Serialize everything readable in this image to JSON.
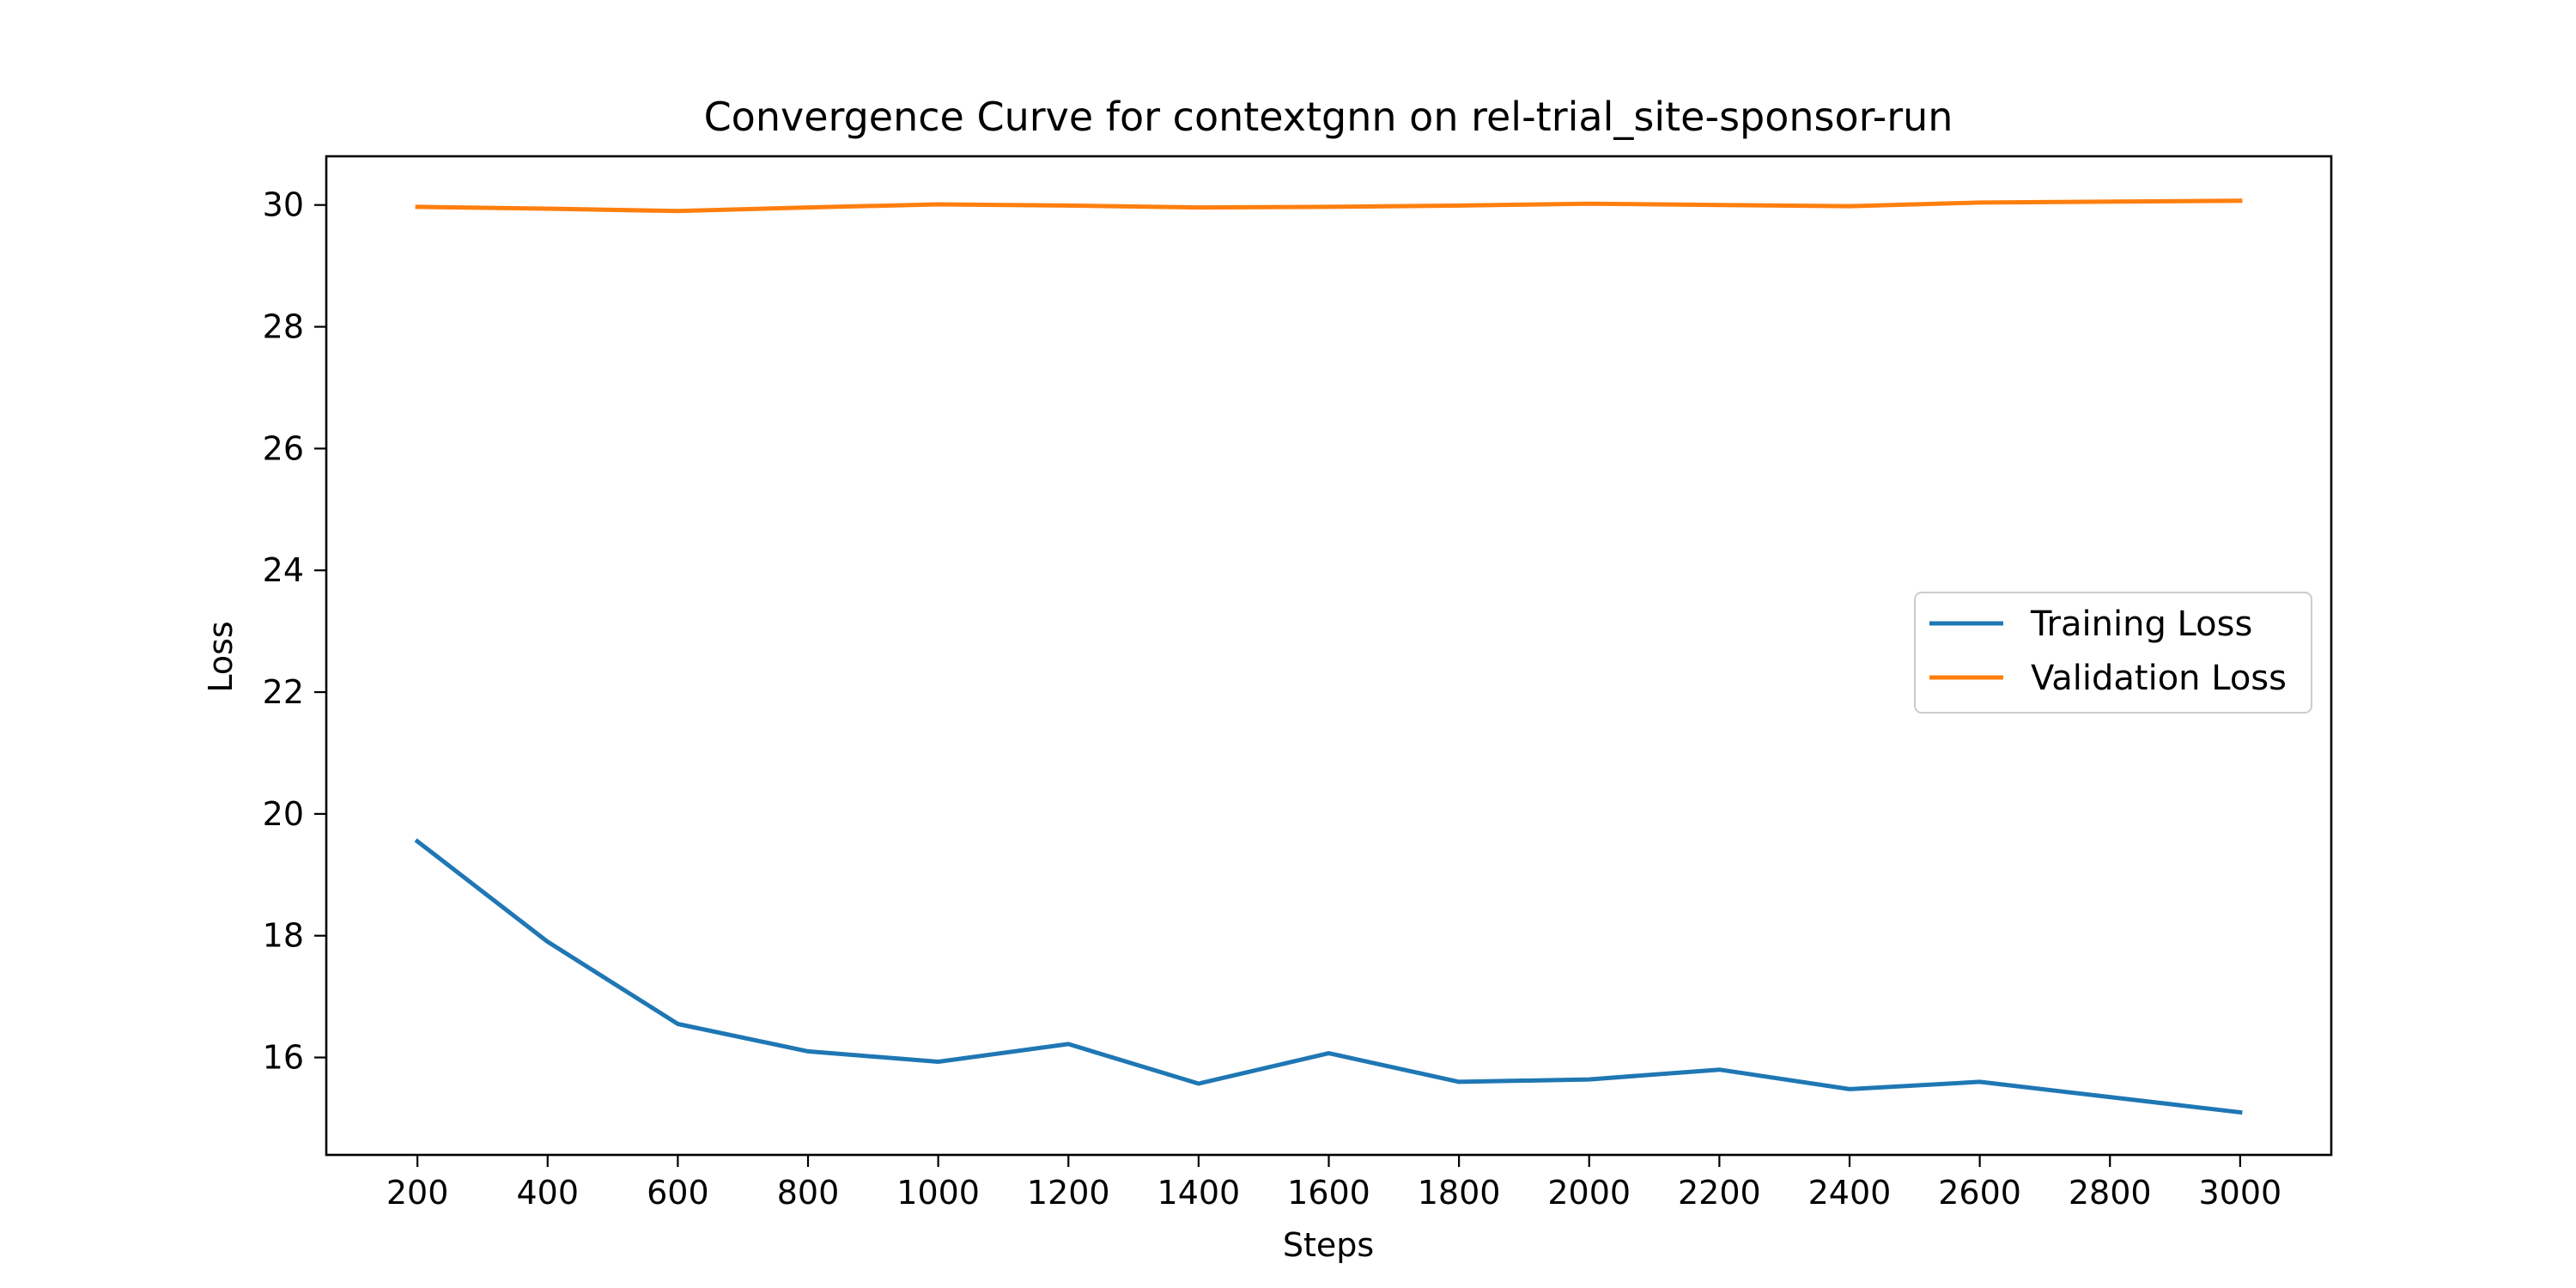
{
  "chart_data": {
    "type": "line",
    "title": "Convergence Curve for contextgnn on rel-trial_site-sponsor-run",
    "xlabel": "Steps",
    "ylabel": "Loss",
    "x": [
      200,
      400,
      600,
      800,
      1000,
      1200,
      1400,
      1600,
      1800,
      2000,
      2200,
      2400,
      2600,
      3000
    ],
    "xlim": [
      60,
      3140
    ],
    "ylim": [
      14.4,
      30.8
    ],
    "xticks": [
      200,
      400,
      600,
      800,
      1000,
      1200,
      1400,
      1600,
      1800,
      2000,
      2200,
      2400,
      2600,
      2800,
      3000
    ],
    "yticks": [
      16,
      18,
      20,
      22,
      24,
      26,
      28,
      30
    ],
    "grid": false,
    "legend_position": "center-right",
    "series": [
      {
        "name": "Training Loss",
        "color": "#1f77b4",
        "values": [
          19.55,
          17.9,
          16.55,
          16.1,
          15.93,
          16.22,
          15.57,
          16.07,
          15.6,
          15.64,
          15.8,
          15.48,
          15.6,
          15.1
        ]
      },
      {
        "name": "Validation Loss",
        "color": "#ff7f0e",
        "values": [
          29.97,
          29.94,
          29.9,
          29.96,
          30.01,
          29.99,
          29.96,
          29.97,
          29.99,
          30.02,
          30.0,
          29.98,
          30.04,
          30.07
        ]
      }
    ]
  }
}
